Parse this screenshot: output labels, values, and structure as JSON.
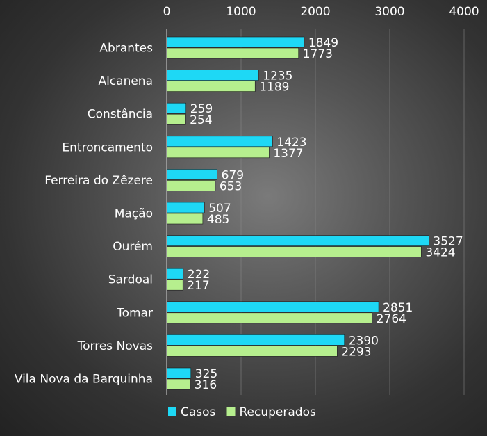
{
  "chart_data": {
    "type": "bar",
    "orientation": "horizontal",
    "categories": [
      "Abrantes",
      "Alcanena",
      "Constância",
      "Entroncamento",
      "Ferreira do Zêzere",
      "Mação",
      "Ourém",
      "Sardoal",
      "Tomar",
      "Torres Novas",
      "Vila Nova da Barquinha"
    ],
    "series": [
      {
        "name": "Casos",
        "color": "#1ed8f5",
        "values": [
          1849,
          1235,
          259,
          1423,
          679,
          507,
          3527,
          222,
          2851,
          2390,
          325
        ]
      },
      {
        "name": "Recuperados",
        "color": "#b6ef8e",
        "values": [
          1773,
          1189,
          254,
          1377,
          653,
          485,
          3424,
          217,
          2764,
          2293,
          316
        ]
      }
    ],
    "xlim": [
      0,
      4000
    ],
    "x_ticks": [
      "0",
      "1000",
      "2000",
      "3000",
      "4000"
    ],
    "x_axis_position": "top",
    "grid": true,
    "legend_position": "bottom-left",
    "data_labels": true
  }
}
